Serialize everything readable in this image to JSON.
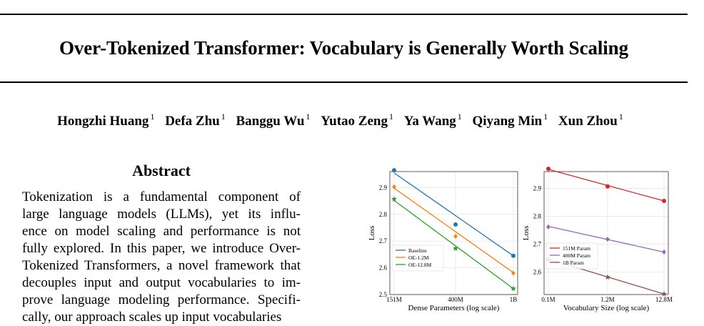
{
  "paper": {
    "title": "Over-Tokenized Transformer: Vocabulary is Generally Worth Scaling",
    "authors": [
      {
        "name": "Hongzhi Huang",
        "affil": "1"
      },
      {
        "name": "Defa Zhu",
        "affil": "1"
      },
      {
        "name": "Banggu Wu",
        "affil": "1"
      },
      {
        "name": "Yutao Zeng",
        "affil": "1"
      },
      {
        "name": "Ya Wang",
        "affil": "1"
      },
      {
        "name": "Qiyang Min",
        "affil": "1"
      },
      {
        "name": "Xun Zhou",
        "affil": "1"
      }
    ],
    "abstract_heading": "Abstract",
    "abstract_lines": [
      "Tokenization is a fundamental component of",
      "large language models (LLMs), yet its influ-",
      "ence on model scaling and performance is not",
      "fully explored. In this paper, we introduce Over-",
      "Tokenized Transformers, a novel framework that",
      "decouples input and output vocabularies to im-",
      "prove language modeling performance. Specifi-",
      "cally, our approach scales up input vocabularies"
    ]
  },
  "chart_data": [
    {
      "type": "line",
      "xlabel": "Dense Parameters (log scale)",
      "ylabel": "Loss",
      "x_scale": "log",
      "x_ticks": [
        "151M",
        "400M",
        "1B"
      ],
      "x": [
        151,
        400,
        1000
      ],
      "y_ticks": [
        "2.5",
        "2.6",
        "2.7",
        "2.8",
        "2.9"
      ],
      "ylim": [
        2.5,
        2.96
      ],
      "grid": true,
      "legend_position": "bottom-left",
      "series": [
        {
          "name": "Baseline",
          "color": "#1f77b4",
          "marker": "circle",
          "values": [
            2.965,
            2.762,
            2.645
          ],
          "fit": [
            2.955,
            2.645
          ]
        },
        {
          "name": "OE-1.2M",
          "color": "#ff7f0e",
          "marker": "diamond",
          "values": [
            2.903,
            2.718,
            2.58
          ],
          "fit": [
            2.898,
            2.582
          ]
        },
        {
          "name": "OE-12.8M",
          "color": "#2ca02c",
          "marker": "star",
          "values": [
            2.857,
            2.672,
            2.522
          ],
          "fit": [
            2.852,
            2.522
          ]
        }
      ]
    },
    {
      "type": "line",
      "xlabel": "Vocabulary Size (log scale)",
      "ylabel": "Loss",
      "x_scale": "log",
      "x_ticks": [
        "0.1M",
        "1.2M",
        "12.8M"
      ],
      "x": [
        0.1,
        1.2,
        12.8
      ],
      "y_ticks": [
        "2.6",
        "2.7",
        "2.8",
        "2.9"
      ],
      "ylim": [
        2.52,
        2.96
      ],
      "grid": true,
      "legend_position": "bottom-left",
      "series": [
        {
          "name": "151M Param",
          "color": "#d62728",
          "marker": "circle",
          "values": [
            2.97,
            2.907,
            2.855
          ],
          "fit": [
            2.968,
            2.855
          ]
        },
        {
          "name": "400M Param",
          "color": "#9467bd",
          "marker": "diamond",
          "values": [
            2.762,
            2.718,
            2.672
          ],
          "fit": [
            2.764,
            2.672
          ]
        },
        {
          "name": "1B Param",
          "color": "#8c564b",
          "marker": "star",
          "values": [
            2.645,
            2.582,
            2.522
          ],
          "fit": [
            2.647,
            2.522
          ]
        }
      ]
    }
  ]
}
